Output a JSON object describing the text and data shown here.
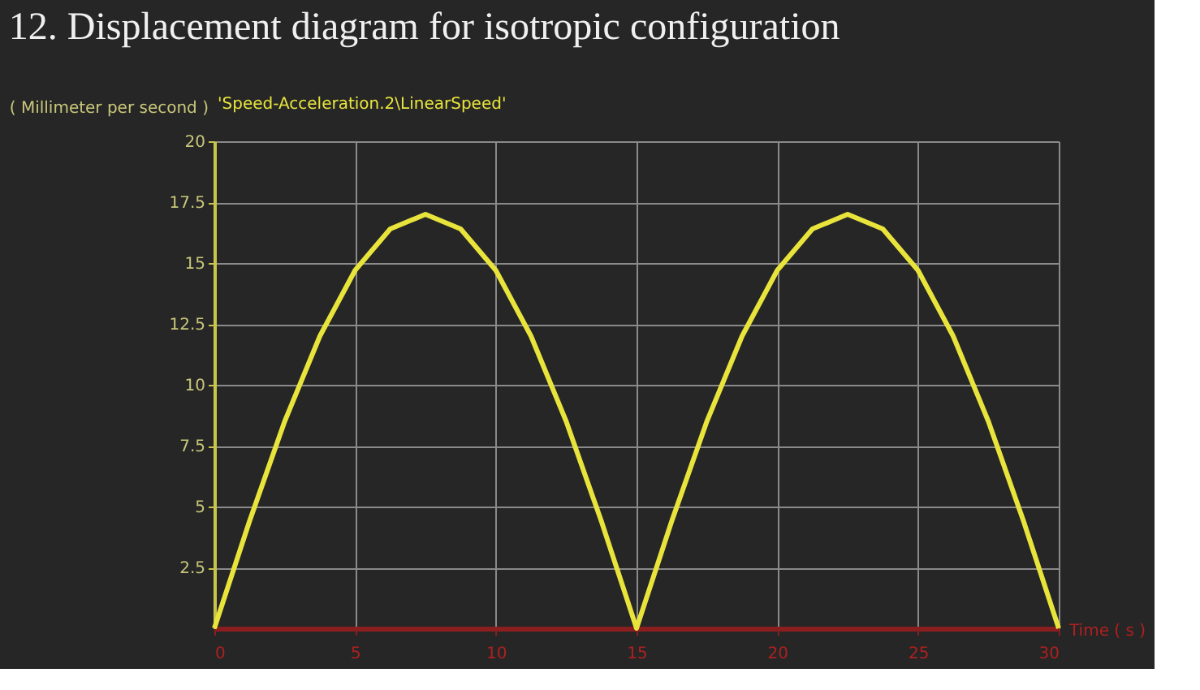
{
  "chart_data": {
    "type": "line",
    "title": "12.  Displacement diagram for isotropic configuration",
    "ylabel": "( Millimeter per second )",
    "xlabel": "Time ( s )",
    "series": [
      {
        "name": "'Speed-Acceleration.2\\LinearSpeed'",
        "color": "#e8e43c",
        "x": [
          0,
          1.25,
          2.5,
          3.75,
          5,
          6.25,
          7.5,
          8.75,
          10,
          11.25,
          12.5,
          13.75,
          15,
          16.25,
          17.5,
          18.75,
          20,
          21.25,
          22.5,
          23.75,
          25,
          26.25,
          27.5,
          28.75,
          30
        ],
        "values": [
          0,
          4.4,
          8.5,
          12,
          14.7,
          16.4,
          17,
          16.4,
          14.7,
          12,
          8.5,
          4.4,
          0,
          4.4,
          8.5,
          12,
          14.7,
          16.4,
          17,
          16.4,
          14.7,
          12,
          8.5,
          4.4,
          0
        ]
      }
    ],
    "xlim": [
      0,
      30
    ],
    "xticks": [
      0,
      5,
      10,
      15,
      20,
      25,
      30
    ],
    "ylim": [
      0,
      20
    ],
    "yticks": [
      2.5,
      5,
      7.5,
      10,
      12.5,
      15,
      17.5,
      20
    ],
    "grid": true,
    "legend": false,
    "marker": "none",
    "line_style": "solid"
  }
}
